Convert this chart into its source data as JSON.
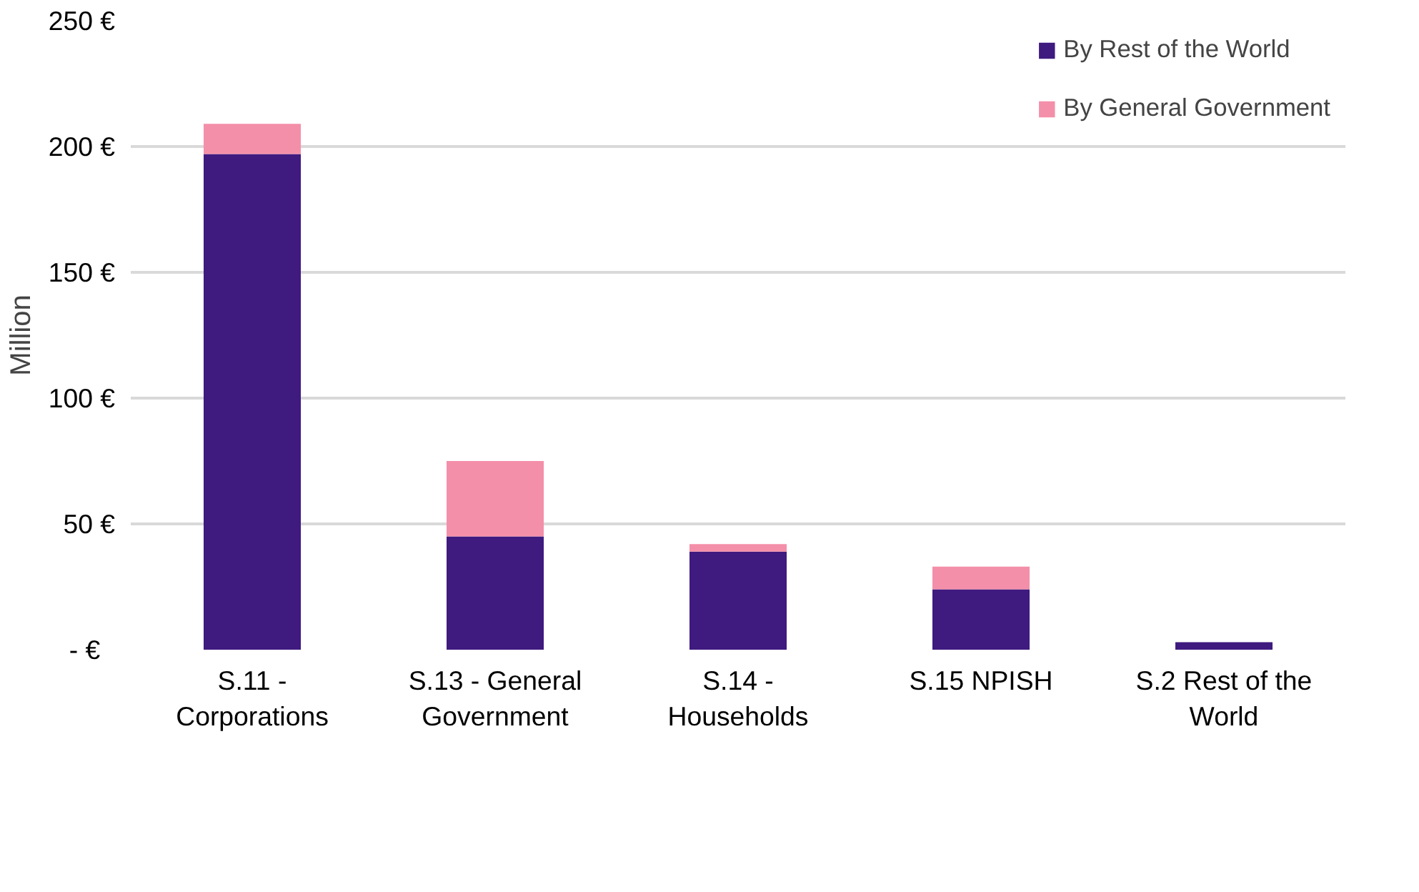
{
  "chart_data": {
    "type": "bar",
    "stacked": true,
    "ylabel": "Million",
    "categories": [
      "S.11 - Corporations",
      "S.13 - General Government",
      "S.14 - Households",
      "S.15 NPISH",
      "S.2 Rest of the World"
    ],
    "series": [
      {
        "name": "By Rest of the World",
        "color": "#3f1a7f",
        "values": [
          197,
          45,
          39,
          24,
          3
        ]
      },
      {
        "name": "By General Government",
        "color": "#f48fa9",
        "values": [
          12,
          30,
          3,
          9,
          0
        ]
      }
    ],
    "ylim": [
      0,
      250
    ],
    "yticks": [
      {
        "value": 0,
        "label": "-   €"
      },
      {
        "value": 50,
        "label": "50 €"
      },
      {
        "value": 100,
        "label": "100 €"
      },
      {
        "value": 150,
        "label": "150 €"
      },
      {
        "value": 200,
        "label": "200 €"
      },
      {
        "value": 250,
        "label": "250 €"
      }
    ],
    "grid": "y",
    "legend": "top right"
  }
}
